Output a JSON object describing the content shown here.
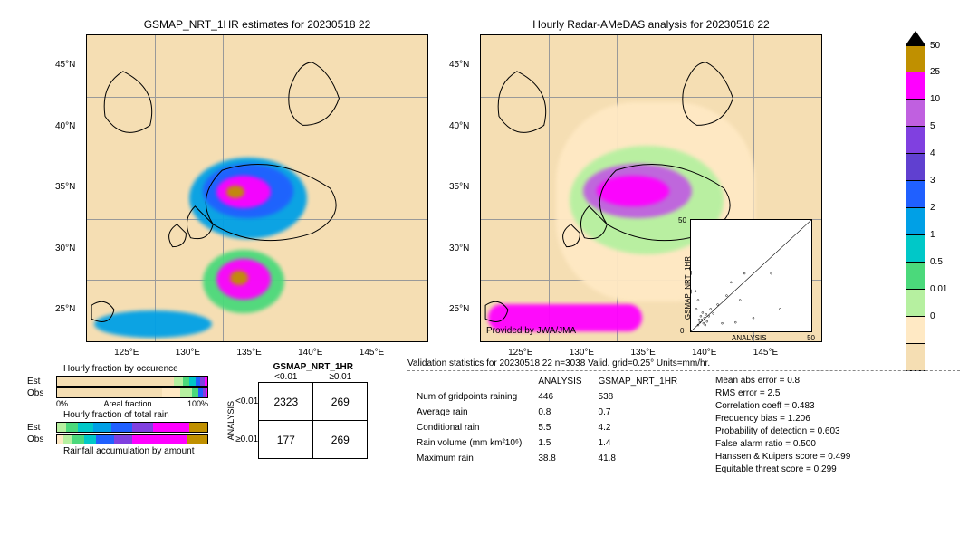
{
  "colors": {
    "land": "#f5deb3",
    "scale": [
      "#f5deb3",
      "#ffe9c4",
      "#b6f0a0",
      "#4bd97b",
      "#00c8c8",
      "#00a0e6",
      "#2060ff",
      "#6040d0",
      "#8040e0",
      "#c060e0",
      "#ff00ff",
      "#c09000"
    ],
    "scale_ticks": [
      "0",
      "0.01",
      "0.5",
      "1",
      "2",
      "3",
      "4",
      "5",
      "10",
      "25",
      "50"
    ]
  },
  "maps": {
    "left_title": "GSMAP_NRT_1HR estimates for 20230518 22",
    "right_title": "Hourly Radar-AMeDAS analysis for 20230518 22",
    "yticks": [
      "45°N",
      "40°N",
      "35°N",
      "30°N",
      "25°N"
    ],
    "xticks": [
      "125°E",
      "130°E",
      "135°E",
      "140°E",
      "145°E"
    ],
    "attribution": "Provided by JWA/JMA"
  },
  "fractions": {
    "title1": "Hourly fraction by occurence",
    "title2": "Hourly fraction of total rain",
    "title3": "Rainfall accumulation by amount",
    "rows": [
      "Est",
      "Obs"
    ],
    "axis_label": "Areal fraction",
    "axis": [
      "0%",
      "100%"
    ]
  },
  "contingency": {
    "col_header": "GSMAP_NRT_1HR",
    "row_header": "ANALYSIS",
    "col_labels": [
      "<0.01",
      "≥0.01"
    ],
    "row_labels": [
      "<0.01",
      "≥0.01"
    ],
    "cells": [
      [
        "2323",
        "269"
      ],
      [
        "177",
        "269"
      ]
    ]
  },
  "scatter": {
    "ylabel": "GSMAP_NRT_1HR",
    "xlabel": "ANALYSIS",
    "ticks": [
      "0",
      "10",
      "20",
      "30",
      "40",
      "50"
    ]
  },
  "stats": {
    "title": "Validation statistics for 20230518 22  n=3038 Valid. grid=0.25°  Units=mm/hr.",
    "table_headers": [
      "",
      "ANALYSIS",
      "GSMAP_NRT_1HR"
    ],
    "table_rows": [
      [
        "Num of gridpoints raining",
        "446",
        "538"
      ],
      [
        "Average rain",
        "0.8",
        "0.7"
      ],
      [
        "Conditional rain",
        "5.5",
        "4.2"
      ],
      [
        "Rain volume (mm km²10⁶)",
        "1.5",
        "1.4"
      ],
      [
        "Maximum rain",
        "38.8",
        "41.8"
      ]
    ],
    "metrics": [
      [
        "Mean abs error",
        "0.8"
      ],
      [
        "RMS error",
        "2.5"
      ],
      [
        "Correlation coeff",
        "0.483"
      ],
      [
        "Frequency bias",
        "1.206"
      ],
      [
        "Probability of detection",
        "0.603"
      ],
      [
        "False alarm ratio",
        "0.500"
      ],
      [
        "Hanssen & Kuipers score",
        "0.499"
      ],
      [
        "Equitable threat score",
        "0.299"
      ]
    ]
  }
}
